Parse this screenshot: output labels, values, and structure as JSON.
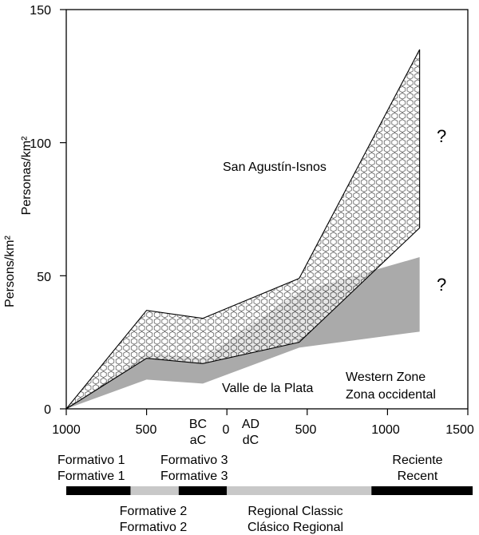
{
  "chart_data": {
    "type": "area",
    "ylabel_lines": [
      "Personas/km²",
      "Persons/km²"
    ],
    "ylim": [
      0,
      150
    ],
    "y_ticks": [
      "0",
      "50",
      "100",
      "150"
    ],
    "y_tick_values": [
      0,
      50,
      100,
      150
    ],
    "x_ticks": [
      {
        "label": "1000",
        "x": -1000
      },
      {
        "label": "500",
        "x": -500
      },
      {
        "label": "0",
        "x": 0
      },
      {
        "label": "500",
        "x": 500
      },
      {
        "label": "1000",
        "x": 1000
      },
      {
        "label": "1500",
        "x": 1500
      }
    ],
    "era_labels": {
      "bc": "BC",
      "ac": "aC",
      "ad": "AD",
      "dc": "dC"
    },
    "xlim": [
      -1000,
      1500
    ],
    "series": [
      {
        "name": "San Agustín-Isnos",
        "pattern": "hexagon",
        "upper": [
          [
            -1000,
            0
          ],
          [
            -500,
            37
          ],
          [
            -150,
            34
          ],
          [
            450,
            49
          ],
          [
            1200,
            135
          ]
        ],
        "lower": [
          [
            -1000,
            0
          ],
          [
            -500,
            19
          ],
          [
            -150,
            17
          ],
          [
            450,
            25
          ],
          [
            1200,
            68
          ]
        ]
      },
      {
        "name": "Valle de la Plata",
        "color": "#aaaaaa",
        "upper": [
          [
            -1000,
            0
          ],
          [
            -500,
            21
          ],
          [
            -150,
            19
          ],
          [
            450,
            44
          ],
          [
            1200,
            57
          ]
        ],
        "lower": [
          [
            -1000,
            0
          ],
          [
            -500,
            11
          ],
          [
            -150,
            9.5
          ],
          [
            450,
            23
          ],
          [
            1200,
            29
          ]
        ]
      }
    ],
    "annotations": {
      "san_agustin": "San Agustín-Isnos",
      "valle": "Valle de la Plata",
      "western_1": "Western Zone",
      "western_2": "Zona occidental",
      "question_mark": "?"
    },
    "periods": [
      {
        "start": -1000,
        "end": -600,
        "color": "#000000",
        "label1": "Formativo 1",
        "label2": "Formative 1"
      },
      {
        "start": -600,
        "end": -300,
        "color": "#c8c8c8",
        "label1": "Formative 2",
        "label2": "Formativo 2"
      },
      {
        "start": -300,
        "end": 0,
        "color": "#000000",
        "label1": "Formativo 3",
        "label2": "Formative 3"
      },
      {
        "start": 0,
        "end": 900,
        "color": "#c8c8c8",
        "label1": "Regional Classic",
        "label2": "Clásico Regional"
      },
      {
        "start": 900,
        "end": 1530,
        "color": "#000000",
        "label1": "Reciente",
        "label2": "Recent"
      }
    ],
    "grid": false
  }
}
